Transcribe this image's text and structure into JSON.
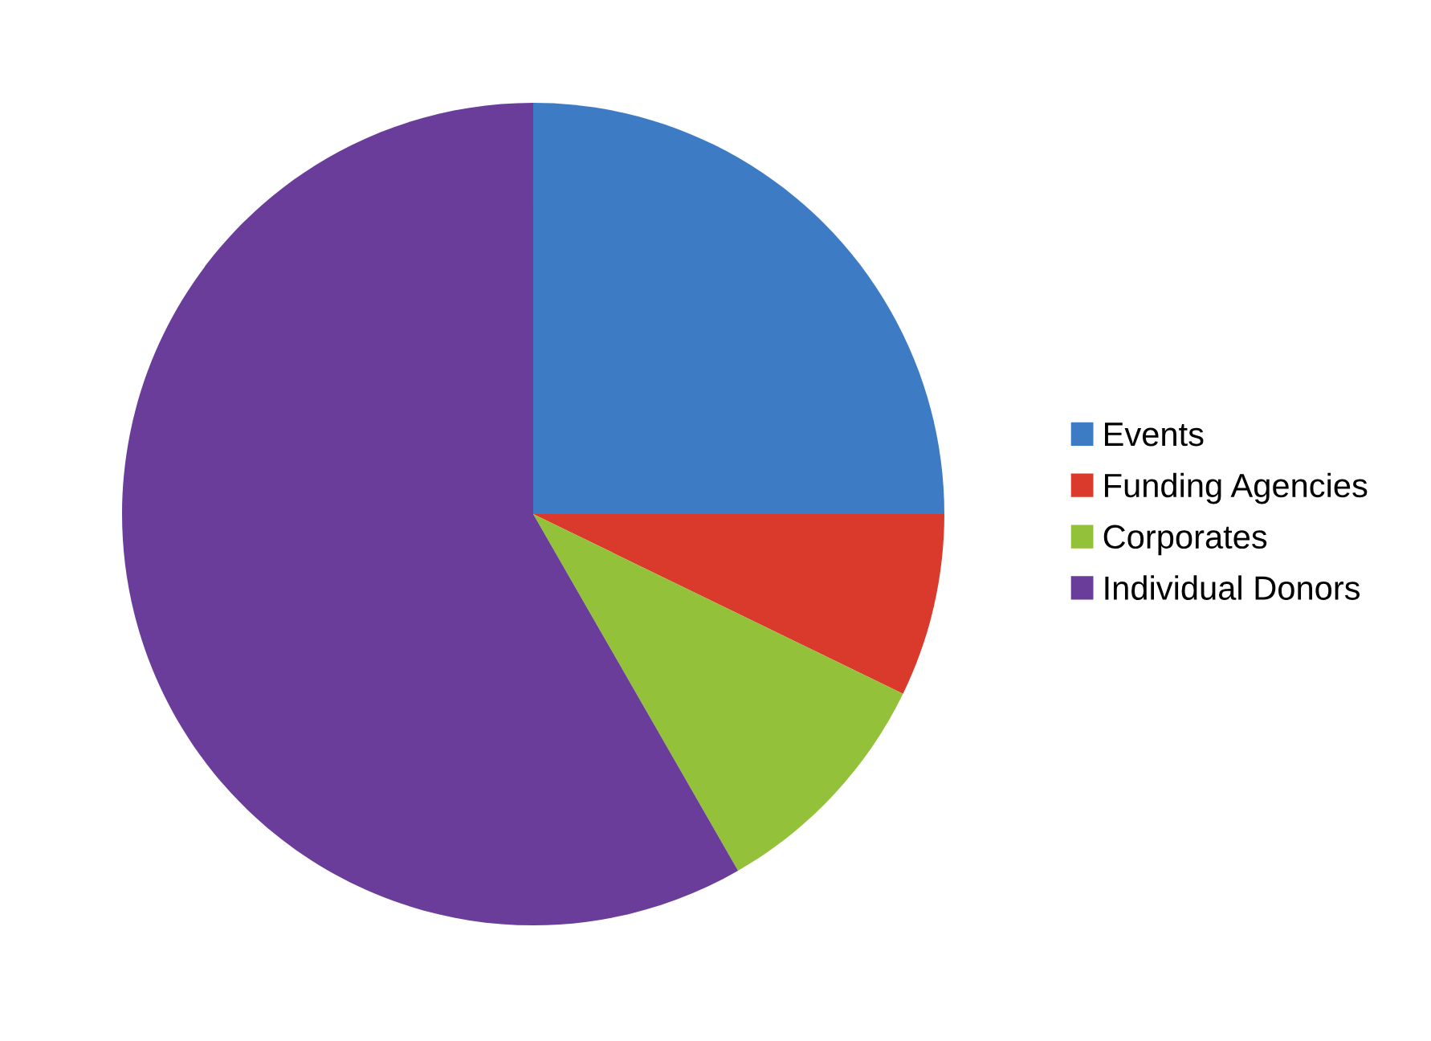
{
  "chart_data": {
    "type": "pie",
    "categories": [
      "Events",
      "Funding Agencies",
      "Corporates",
      "Individual Donors"
    ],
    "values": [
      25,
      7.2,
      9.5,
      58.3
    ],
    "colors": [
      "#3d7cc4",
      "#d93a2b",
      "#93c13a",
      "#6a3d9a"
    ],
    "legend": "right"
  }
}
